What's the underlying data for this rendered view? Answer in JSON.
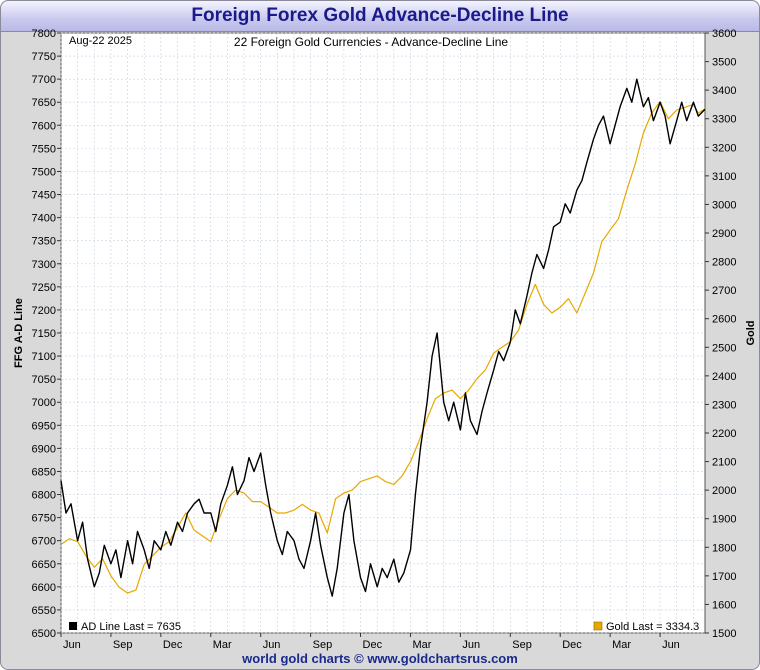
{
  "header": {
    "title": "Foreign Forex Gold Advance-Decline Line"
  },
  "footer": {
    "text": "world gold charts © www.goldchartsrus.com"
  },
  "chart_data": {
    "type": "line",
    "title": "22 Foreign Gold Currencies - Advance-Decline Line",
    "date_label": "Aug-22  2025",
    "ylabel_left": "FFG A-D Line",
    "ylabel_right": "Gold",
    "ylim_left": [
      6500,
      7800
    ],
    "ylim_right": [
      1500,
      3600
    ],
    "yticks_left": [
      6500,
      6550,
      6600,
      6650,
      6700,
      6750,
      6800,
      6850,
      6900,
      6950,
      7000,
      7050,
      7100,
      7150,
      7200,
      7250,
      7300,
      7350,
      7400,
      7450,
      7500,
      7550,
      7600,
      7650,
      7700,
      7750,
      7800
    ],
    "yticks_right": [
      1500,
      1600,
      1700,
      1800,
      1900,
      2000,
      2100,
      2200,
      2300,
      2400,
      2500,
      2600,
      2700,
      2800,
      2900,
      3000,
      3100,
      3200,
      3300,
      3400,
      3500,
      3600
    ],
    "xtick_labels": [
      "Jun",
      "Sep",
      "Dec",
      "Mar",
      "Jun",
      "Sep",
      "Dec",
      "Mar",
      "Jun",
      "Sep",
      "Dec",
      "Mar",
      "Jun"
    ],
    "xtick_months": [
      0,
      3,
      6,
      9,
      12,
      15,
      18,
      21,
      24,
      27,
      30,
      33,
      36
    ],
    "x_months_range": [
      0,
      38.7
    ],
    "x_unit": "months since Jun 2022",
    "colors": {
      "ad_line": "#000000",
      "gold": "#e8a800",
      "grid": "#c8d2e0",
      "plot_bg": "#ffffff"
    },
    "legend": {
      "ad": "AD Line  Last = 7635",
      "gold": "Gold  Last = 3334.3"
    },
    "series": [
      {
        "name": "AD Line",
        "axis": "left",
        "color": "#000000",
        "points": [
          [
            0,
            6830
          ],
          [
            0.3,
            6760
          ],
          [
            0.6,
            6780
          ],
          [
            1.0,
            6700
          ],
          [
            1.3,
            6740
          ],
          [
            1.6,
            6660
          ],
          [
            2.0,
            6600
          ],
          [
            2.3,
            6630
          ],
          [
            2.6,
            6690
          ],
          [
            3.0,
            6650
          ],
          [
            3.3,
            6680
          ],
          [
            3.6,
            6620
          ],
          [
            4.0,
            6700
          ],
          [
            4.3,
            6650
          ],
          [
            4.6,
            6720
          ],
          [
            5.0,
            6680
          ],
          [
            5.3,
            6640
          ],
          [
            5.6,
            6700
          ],
          [
            6.0,
            6680
          ],
          [
            6.3,
            6720
          ],
          [
            6.6,
            6690
          ],
          [
            7.0,
            6740
          ],
          [
            7.3,
            6720
          ],
          [
            7.6,
            6760
          ],
          [
            8.0,
            6780
          ],
          [
            8.3,
            6790
          ],
          [
            8.6,
            6760
          ],
          [
            9.0,
            6760
          ],
          [
            9.3,
            6720
          ],
          [
            9.6,
            6780
          ],
          [
            10.0,
            6820
          ],
          [
            10.3,
            6860
          ],
          [
            10.6,
            6800
          ],
          [
            11.0,
            6830
          ],
          [
            11.3,
            6880
          ],
          [
            11.6,
            6850
          ],
          [
            12.0,
            6890
          ],
          [
            12.3,
            6820
          ],
          [
            12.6,
            6760
          ],
          [
            13.0,
            6700
          ],
          [
            13.3,
            6670
          ],
          [
            13.6,
            6720
          ],
          [
            14.0,
            6700
          ],
          [
            14.3,
            6660
          ],
          [
            14.6,
            6640
          ],
          [
            15.0,
            6700
          ],
          [
            15.3,
            6760
          ],
          [
            15.6,
            6690
          ],
          [
            16.0,
            6620
          ],
          [
            16.3,
            6580
          ],
          [
            16.6,
            6640
          ],
          [
            17.0,
            6760
          ],
          [
            17.3,
            6800
          ],
          [
            17.6,
            6700
          ],
          [
            18.0,
            6620
          ],
          [
            18.3,
            6590
          ],
          [
            18.6,
            6650
          ],
          [
            19.0,
            6600
          ],
          [
            19.3,
            6640
          ],
          [
            19.6,
            6620
          ],
          [
            20.0,
            6660
          ],
          [
            20.3,
            6610
          ],
          [
            20.6,
            6630
          ],
          [
            21.0,
            6680
          ],
          [
            21.3,
            6800
          ],
          [
            21.6,
            6900
          ],
          [
            22.0,
            7000
          ],
          [
            22.3,
            7100
          ],
          [
            22.6,
            7150
          ],
          [
            23.0,
            7000
          ],
          [
            23.3,
            6960
          ],
          [
            23.6,
            7000
          ],
          [
            24.0,
            6940
          ],
          [
            24.3,
            7020
          ],
          [
            24.6,
            6960
          ],
          [
            25.0,
            6930
          ],
          [
            25.3,
            6980
          ],
          [
            25.6,
            7020
          ],
          [
            26.0,
            7070
          ],
          [
            26.3,
            7110
          ],
          [
            26.6,
            7090
          ],
          [
            27.0,
            7130
          ],
          [
            27.3,
            7200
          ],
          [
            27.6,
            7170
          ],
          [
            28.0,
            7230
          ],
          [
            28.3,
            7280
          ],
          [
            28.6,
            7320
          ],
          [
            29.0,
            7290
          ],
          [
            29.3,
            7330
          ],
          [
            29.6,
            7380
          ],
          [
            30.0,
            7390
          ],
          [
            30.3,
            7430
          ],
          [
            30.6,
            7410
          ],
          [
            31.0,
            7460
          ],
          [
            31.3,
            7480
          ],
          [
            31.6,
            7520
          ],
          [
            32.0,
            7570
          ],
          [
            32.3,
            7600
          ],
          [
            32.6,
            7620
          ],
          [
            33.0,
            7560
          ],
          [
            33.3,
            7600
          ],
          [
            33.6,
            7640
          ],
          [
            34.0,
            7680
          ],
          [
            34.3,
            7650
          ],
          [
            34.6,
            7700
          ],
          [
            35.0,
            7640
          ],
          [
            35.3,
            7660
          ],
          [
            35.6,
            7610
          ],
          [
            36.0,
            7650
          ],
          [
            36.3,
            7620
          ],
          [
            36.6,
            7560
          ],
          [
            37.0,
            7610
          ],
          [
            37.3,
            7650
          ],
          [
            37.6,
            7610
          ],
          [
            38.0,
            7650
          ],
          [
            38.3,
            7620
          ],
          [
            38.7,
            7635
          ]
        ]
      },
      {
        "name": "Gold",
        "axis": "right",
        "color": "#e8a800",
        "points": [
          [
            0,
            1810
          ],
          [
            0.5,
            1830
          ],
          [
            1.0,
            1820
          ],
          [
            1.5,
            1770
          ],
          [
            2.0,
            1730
          ],
          [
            2.5,
            1760
          ],
          [
            3.0,
            1700
          ],
          [
            3.5,
            1660
          ],
          [
            4.0,
            1640
          ],
          [
            4.5,
            1650
          ],
          [
            5.0,
            1740
          ],
          [
            5.5,
            1770
          ],
          [
            6.0,
            1800
          ],
          [
            6.5,
            1820
          ],
          [
            7.0,
            1870
          ],
          [
            7.5,
            1920
          ],
          [
            8.0,
            1860
          ],
          [
            8.5,
            1840
          ],
          [
            9.0,
            1820
          ],
          [
            9.5,
            1900
          ],
          [
            10.0,
            1970
          ],
          [
            10.5,
            2000
          ],
          [
            11.0,
            1990
          ],
          [
            11.5,
            1960
          ],
          [
            12.0,
            1960
          ],
          [
            12.5,
            1940
          ],
          [
            13.0,
            1920
          ],
          [
            13.5,
            1920
          ],
          [
            14.0,
            1930
          ],
          [
            14.5,
            1950
          ],
          [
            15.0,
            1930
          ],
          [
            15.5,
            1920
          ],
          [
            16.0,
            1850
          ],
          [
            16.5,
            1970
          ],
          [
            17.0,
            1990
          ],
          [
            17.5,
            2000
          ],
          [
            18.0,
            2030
          ],
          [
            18.5,
            2040
          ],
          [
            19.0,
            2050
          ],
          [
            19.5,
            2030
          ],
          [
            20.0,
            2020
          ],
          [
            20.5,
            2050
          ],
          [
            21.0,
            2100
          ],
          [
            21.5,
            2170
          ],
          [
            22.0,
            2250
          ],
          [
            22.5,
            2320
          ],
          [
            23.0,
            2340
          ],
          [
            23.5,
            2350
          ],
          [
            24.0,
            2320
          ],
          [
            24.5,
            2350
          ],
          [
            25.0,
            2390
          ],
          [
            25.5,
            2420
          ],
          [
            26.0,
            2480
          ],
          [
            26.5,
            2500
          ],
          [
            27.0,
            2520
          ],
          [
            27.5,
            2560
          ],
          [
            28.0,
            2650
          ],
          [
            28.5,
            2720
          ],
          [
            29.0,
            2650
          ],
          [
            29.5,
            2620
          ],
          [
            30.0,
            2640
          ],
          [
            30.5,
            2670
          ],
          [
            31.0,
            2620
          ],
          [
            31.5,
            2690
          ],
          [
            32.0,
            2760
          ],
          [
            32.5,
            2870
          ],
          [
            33.0,
            2910
          ],
          [
            33.5,
            2950
          ],
          [
            34.0,
            3050
          ],
          [
            34.5,
            3140
          ],
          [
            35.0,
            3250
          ],
          [
            35.5,
            3320
          ],
          [
            36.0,
            3360
          ],
          [
            36.5,
            3300
          ],
          [
            37.0,
            3330
          ],
          [
            37.5,
            3340
          ],
          [
            38.0,
            3350
          ],
          [
            38.3,
            3320
          ],
          [
            38.7,
            3334.3
          ]
        ]
      }
    ]
  }
}
